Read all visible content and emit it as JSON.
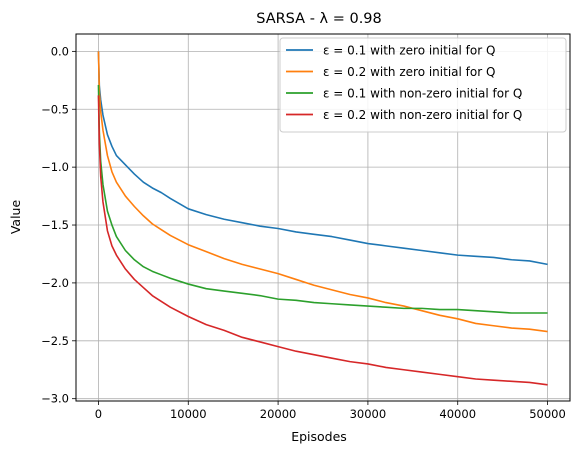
{
  "chart_data": {
    "type": "line",
    "title": "SARSA - λ = 0.98",
    "xlabel": "Episodes",
    "ylabel": "Value",
    "xlim": [
      -2500,
      52500
    ],
    "ylim": [
      -3.02,
      0.15
    ],
    "grid": true,
    "legend_position": "top-right",
    "x_ticks": [
      0,
      10000,
      20000,
      30000,
      40000,
      50000
    ],
    "x_tick_labels": [
      "0",
      "10000",
      "20000",
      "30000",
      "40000",
      "50000"
    ],
    "y_ticks": [
      0.0,
      -0.5,
      -1.0,
      -1.5,
      -2.0,
      -2.5,
      -3.0
    ],
    "y_tick_labels": [
      "0.0",
      "−0.5",
      "−1.0",
      "−1.5",
      "−2.0",
      "−2.5",
      "−3.0"
    ],
    "x": [
      0,
      100,
      250,
      500,
      1000,
      1500,
      2000,
      3000,
      4000,
      5000,
      6000,
      7000,
      8000,
      10000,
      12000,
      14000,
      16000,
      18000,
      20000,
      22000,
      24000,
      26000,
      28000,
      30000,
      32000,
      34000,
      36000,
      38000,
      40000,
      42000,
      44000,
      46000,
      48000,
      50000
    ],
    "series": [
      {
        "name": "ε = 0.1 with zero initial for Q",
        "color": "#1f77b4",
        "values": [
          0.0,
          -0.3,
          -0.42,
          -0.55,
          -0.72,
          -0.82,
          -0.9,
          -0.98,
          -1.06,
          -1.13,
          -1.18,
          -1.22,
          -1.27,
          -1.36,
          -1.41,
          -1.45,
          -1.48,
          -1.51,
          -1.53,
          -1.56,
          -1.58,
          -1.6,
          -1.63,
          -1.66,
          -1.68,
          -1.7,
          -1.72,
          -1.74,
          -1.76,
          -1.77,
          -1.78,
          -1.8,
          -1.81,
          -1.84
        ]
      },
      {
        "name": "ε = 0.2 with zero initial for Q",
        "color": "#ff7f0e",
        "values": [
          0.0,
          -0.35,
          -0.52,
          -0.68,
          -0.9,
          -1.04,
          -1.13,
          -1.25,
          -1.34,
          -1.42,
          -1.49,
          -1.54,
          -1.59,
          -1.67,
          -1.73,
          -1.79,
          -1.84,
          -1.88,
          -1.92,
          -1.97,
          -2.02,
          -2.06,
          -2.1,
          -2.13,
          -2.17,
          -2.2,
          -2.24,
          -2.28,
          -2.31,
          -2.35,
          -2.37,
          -2.39,
          -2.4,
          -2.42
        ]
      },
      {
        "name": "ε = 0.1 with non-zero initial for Q",
        "color": "#2ca02c",
        "values": [
          -0.29,
          -0.7,
          -0.95,
          -1.15,
          -1.38,
          -1.5,
          -1.6,
          -1.72,
          -1.8,
          -1.86,
          -1.9,
          -1.93,
          -1.96,
          -2.01,
          -2.05,
          -2.07,
          -2.09,
          -2.11,
          -2.14,
          -2.15,
          -2.17,
          -2.18,
          -2.19,
          -2.2,
          -2.21,
          -2.22,
          -2.22,
          -2.23,
          -2.23,
          -2.24,
          -2.25,
          -2.26,
          -2.26,
          -2.26
        ]
      },
      {
        "name": "ε = 0.2 with non-zero initial for Q",
        "color": "#d62728",
        "values": [
          -0.38,
          -0.8,
          -1.08,
          -1.3,
          -1.55,
          -1.68,
          -1.76,
          -1.88,
          -1.97,
          -2.04,
          -2.11,
          -2.16,
          -2.21,
          -2.29,
          -2.36,
          -2.41,
          -2.47,
          -2.51,
          -2.55,
          -2.59,
          -2.62,
          -2.65,
          -2.68,
          -2.7,
          -2.73,
          -2.75,
          -2.77,
          -2.79,
          -2.81,
          -2.83,
          -2.84,
          -2.85,
          -2.86,
          -2.88
        ]
      }
    ]
  }
}
